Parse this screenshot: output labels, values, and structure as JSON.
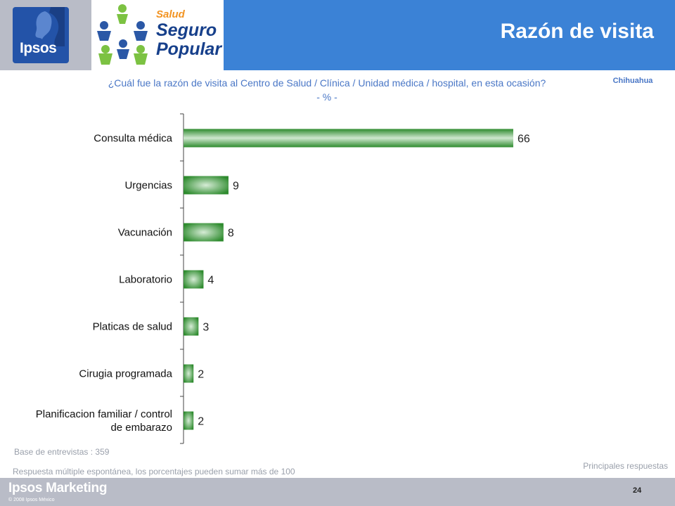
{
  "header": {
    "title": "Razón de visita",
    "ipsos_logo_text": "Ipsos",
    "seguro_popular": {
      "line1": "Salud",
      "line2": "Seguro",
      "line3": "Popular"
    }
  },
  "question": {
    "line1": "¿Cuál fue la razón de visita al Centro de Salud / Clínica / Unidad médica / hospital, en esta ocasión?",
    "line2": "- % -"
  },
  "region": "Chihuahua",
  "notes": {
    "base": "Base de entrevistas : 359",
    "principales": "Principales respuestas",
    "multiple": "Respuesta múltiple espontánea, los porcentajes pueden sumar más de 100"
  },
  "footer": {
    "brand": "Ipsos Marketing",
    "copyright": "© 2008 Ipsos México",
    "page": "24"
  },
  "colors": {
    "header_blue": "#3b82d6",
    "gray_band": "#b9bcc7",
    "bar_dark": "#2e8b2e",
    "bar_light": "#cfe8cf",
    "text_blue": "#4a77c6"
  },
  "chart_data": {
    "type": "bar",
    "orientation": "horizontal",
    "categories": [
      "Consulta médica",
      "Urgencias",
      "Vacunación",
      "Laboratorio",
      "Platicas de salud",
      "Cirugia programada",
      "Planificacion familiar / control de embarazo"
    ],
    "values": [
      66,
      9,
      8,
      4,
      3,
      2,
      2
    ],
    "data_labels": [
      "66",
      "9",
      "8",
      "4",
      "3",
      "2",
      "2"
    ],
    "xlim": [
      0,
      70
    ],
    "grid": false,
    "legend": "none"
  }
}
